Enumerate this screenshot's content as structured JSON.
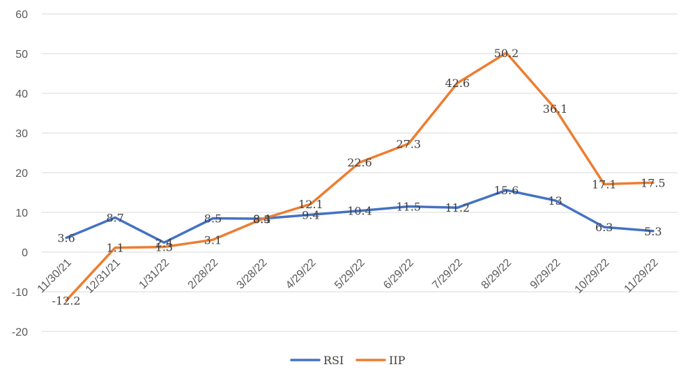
{
  "chart_data": {
    "type": "line",
    "title": "",
    "xlabel": "",
    "ylabel": "",
    "categories": [
      "11/30/21",
      "12/31/21",
      "1/31/22",
      "2/28/22",
      "3/28/22",
      "4/29/22",
      "5/29/22",
      "6/29/22",
      "7/29/22",
      "8/29/22",
      "9/29/22",
      "10/29/22",
      "11/29/22"
    ],
    "ylim": [
      -20,
      60
    ],
    "yticks": [
      -20,
      -10,
      0,
      10,
      20,
      30,
      40,
      50,
      60
    ],
    "grid": true,
    "legend_position": "bottom",
    "series": [
      {
        "name": "RSI",
        "color": "#4472C4",
        "values": [
          3.6,
          8.7,
          2.4,
          8.5,
          8.4,
          9.4,
          10.4,
          11.5,
          11.2,
          15.6,
          13,
          6.3,
          5.3
        ],
        "labels": [
          "3.6",
          "8.7",
          "2.4",
          "8.5",
          "8.4",
          "9.4",
          "10.4",
          "11.5",
          "11.2",
          "15.6",
          "13",
          "6.3",
          "5.3"
        ]
      },
      {
        "name": "IIP",
        "color": "#ED7D31",
        "values": [
          -12.2,
          1.1,
          1.3,
          3.1,
          8.3,
          12.1,
          22.6,
          27.3,
          42.6,
          50.2,
          36.1,
          17.1,
          17.5
        ],
        "labels": [
          "-12.2",
          "1.1",
          "1.3",
          "3.1",
          "8.3",
          "12.1",
          "22.6",
          "27.3",
          "42.6",
          "50.2",
          "36.1",
          "17.1",
          "17.5"
        ]
      }
    ]
  }
}
